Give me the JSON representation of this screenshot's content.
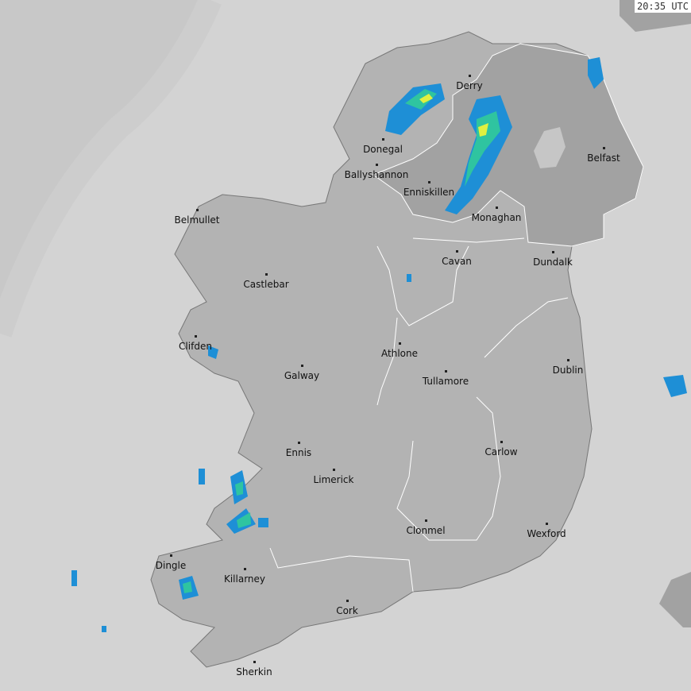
{
  "timestamp": "20:35 UTC",
  "colors": {
    "sea": "#d3d3d3",
    "out_of_range": "#c8c8c8",
    "land": "#b3b3b3",
    "northern_ireland": "#a2a2a2",
    "radar_light": "#1e8fd6",
    "radar_mid": "#2fc4a0",
    "radar_heavy": "#e0f040"
  },
  "cities": [
    {
      "name": "Derry"
    },
    {
      "name": "Donegal"
    },
    {
      "name": "Ballyshannon"
    },
    {
      "name": "Enniskillen"
    },
    {
      "name": "Belfast"
    },
    {
      "name": "Monaghan"
    },
    {
      "name": "Belmullet"
    },
    {
      "name": "Cavan"
    },
    {
      "name": "Dundalk"
    },
    {
      "name": "Castlebar"
    },
    {
      "name": "Clifden"
    },
    {
      "name": "Athlone"
    },
    {
      "name": "Galway"
    },
    {
      "name": "Tullamore"
    },
    {
      "name": "Dublin"
    },
    {
      "name": "Ennis"
    },
    {
      "name": "Carlow"
    },
    {
      "name": "Limerick"
    },
    {
      "name": "Clonmel"
    },
    {
      "name": "Wexford"
    },
    {
      "name": "Dingle"
    },
    {
      "name": "Killarney"
    },
    {
      "name": "Cork"
    },
    {
      "name": "Sherkin"
    }
  ]
}
